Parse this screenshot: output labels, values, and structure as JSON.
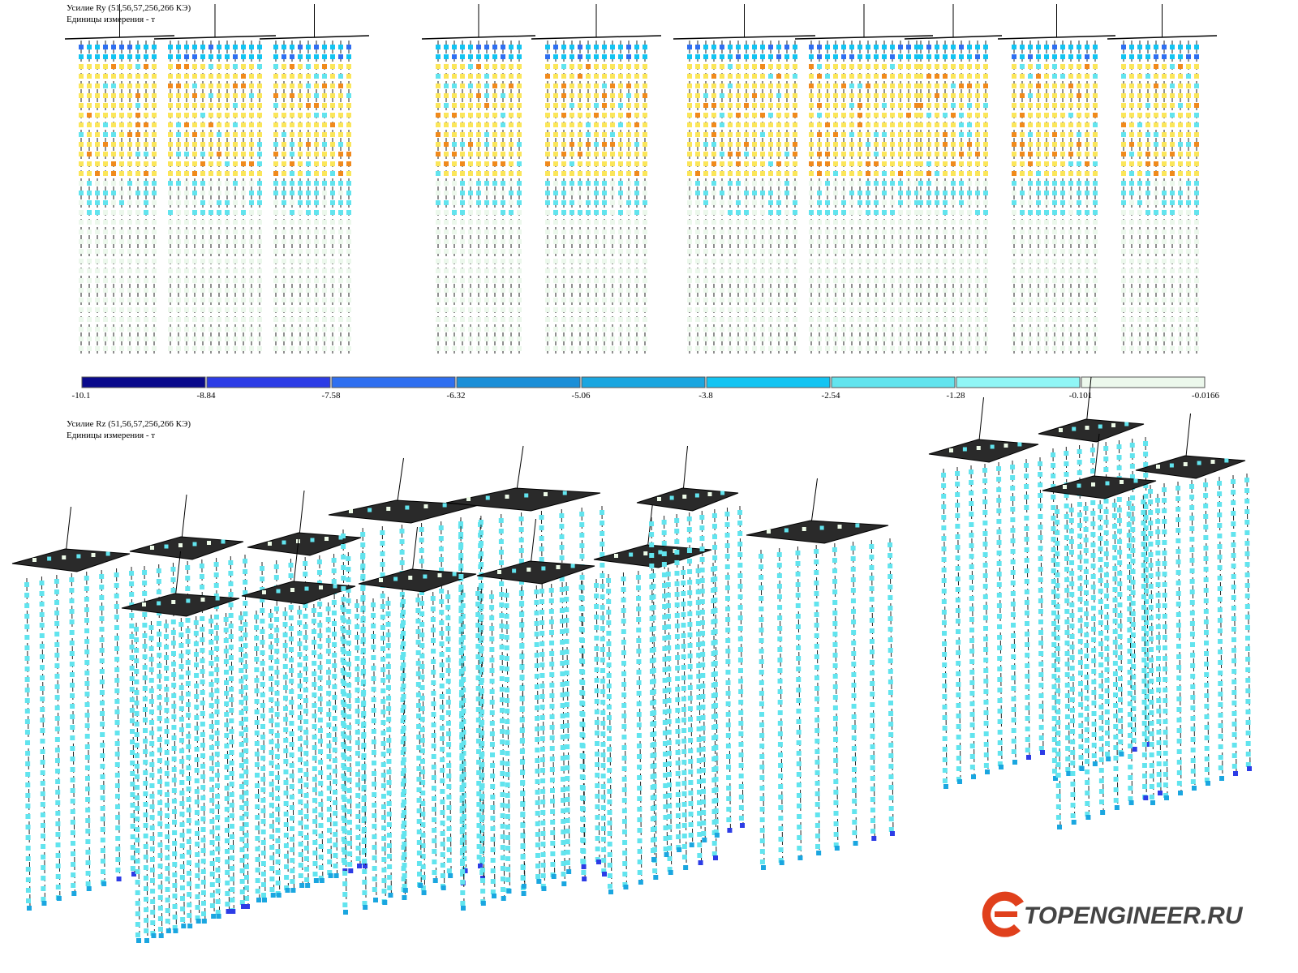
{
  "panels": [
    {
      "title": "Усилие Ry (51,56,57,256,266 КЭ)",
      "units": "Единицы измерения - т"
    },
    {
      "title": "Усилие Rz (51,56,57,256,266 КЭ)",
      "units": "Единицы измерения - т"
    }
  ],
  "legend": {
    "colors": [
      "#0a0a8c",
      "#2c3ce6",
      "#2f6ff0",
      "#1b8fd8",
      "#1aa6e0",
      "#13c4f2",
      "#62e4ee",
      "#90f6f6",
      "#ecf8ec"
    ],
    "ticks": [
      -10.1,
      -8.84,
      -7.58,
      -6.32,
      -5.06,
      -3.8,
      -2.54,
      -1.28,
      -0.101,
      -0.0166
    ]
  },
  "logo": {
    "text": "TOPENGINEER.RU"
  }
}
